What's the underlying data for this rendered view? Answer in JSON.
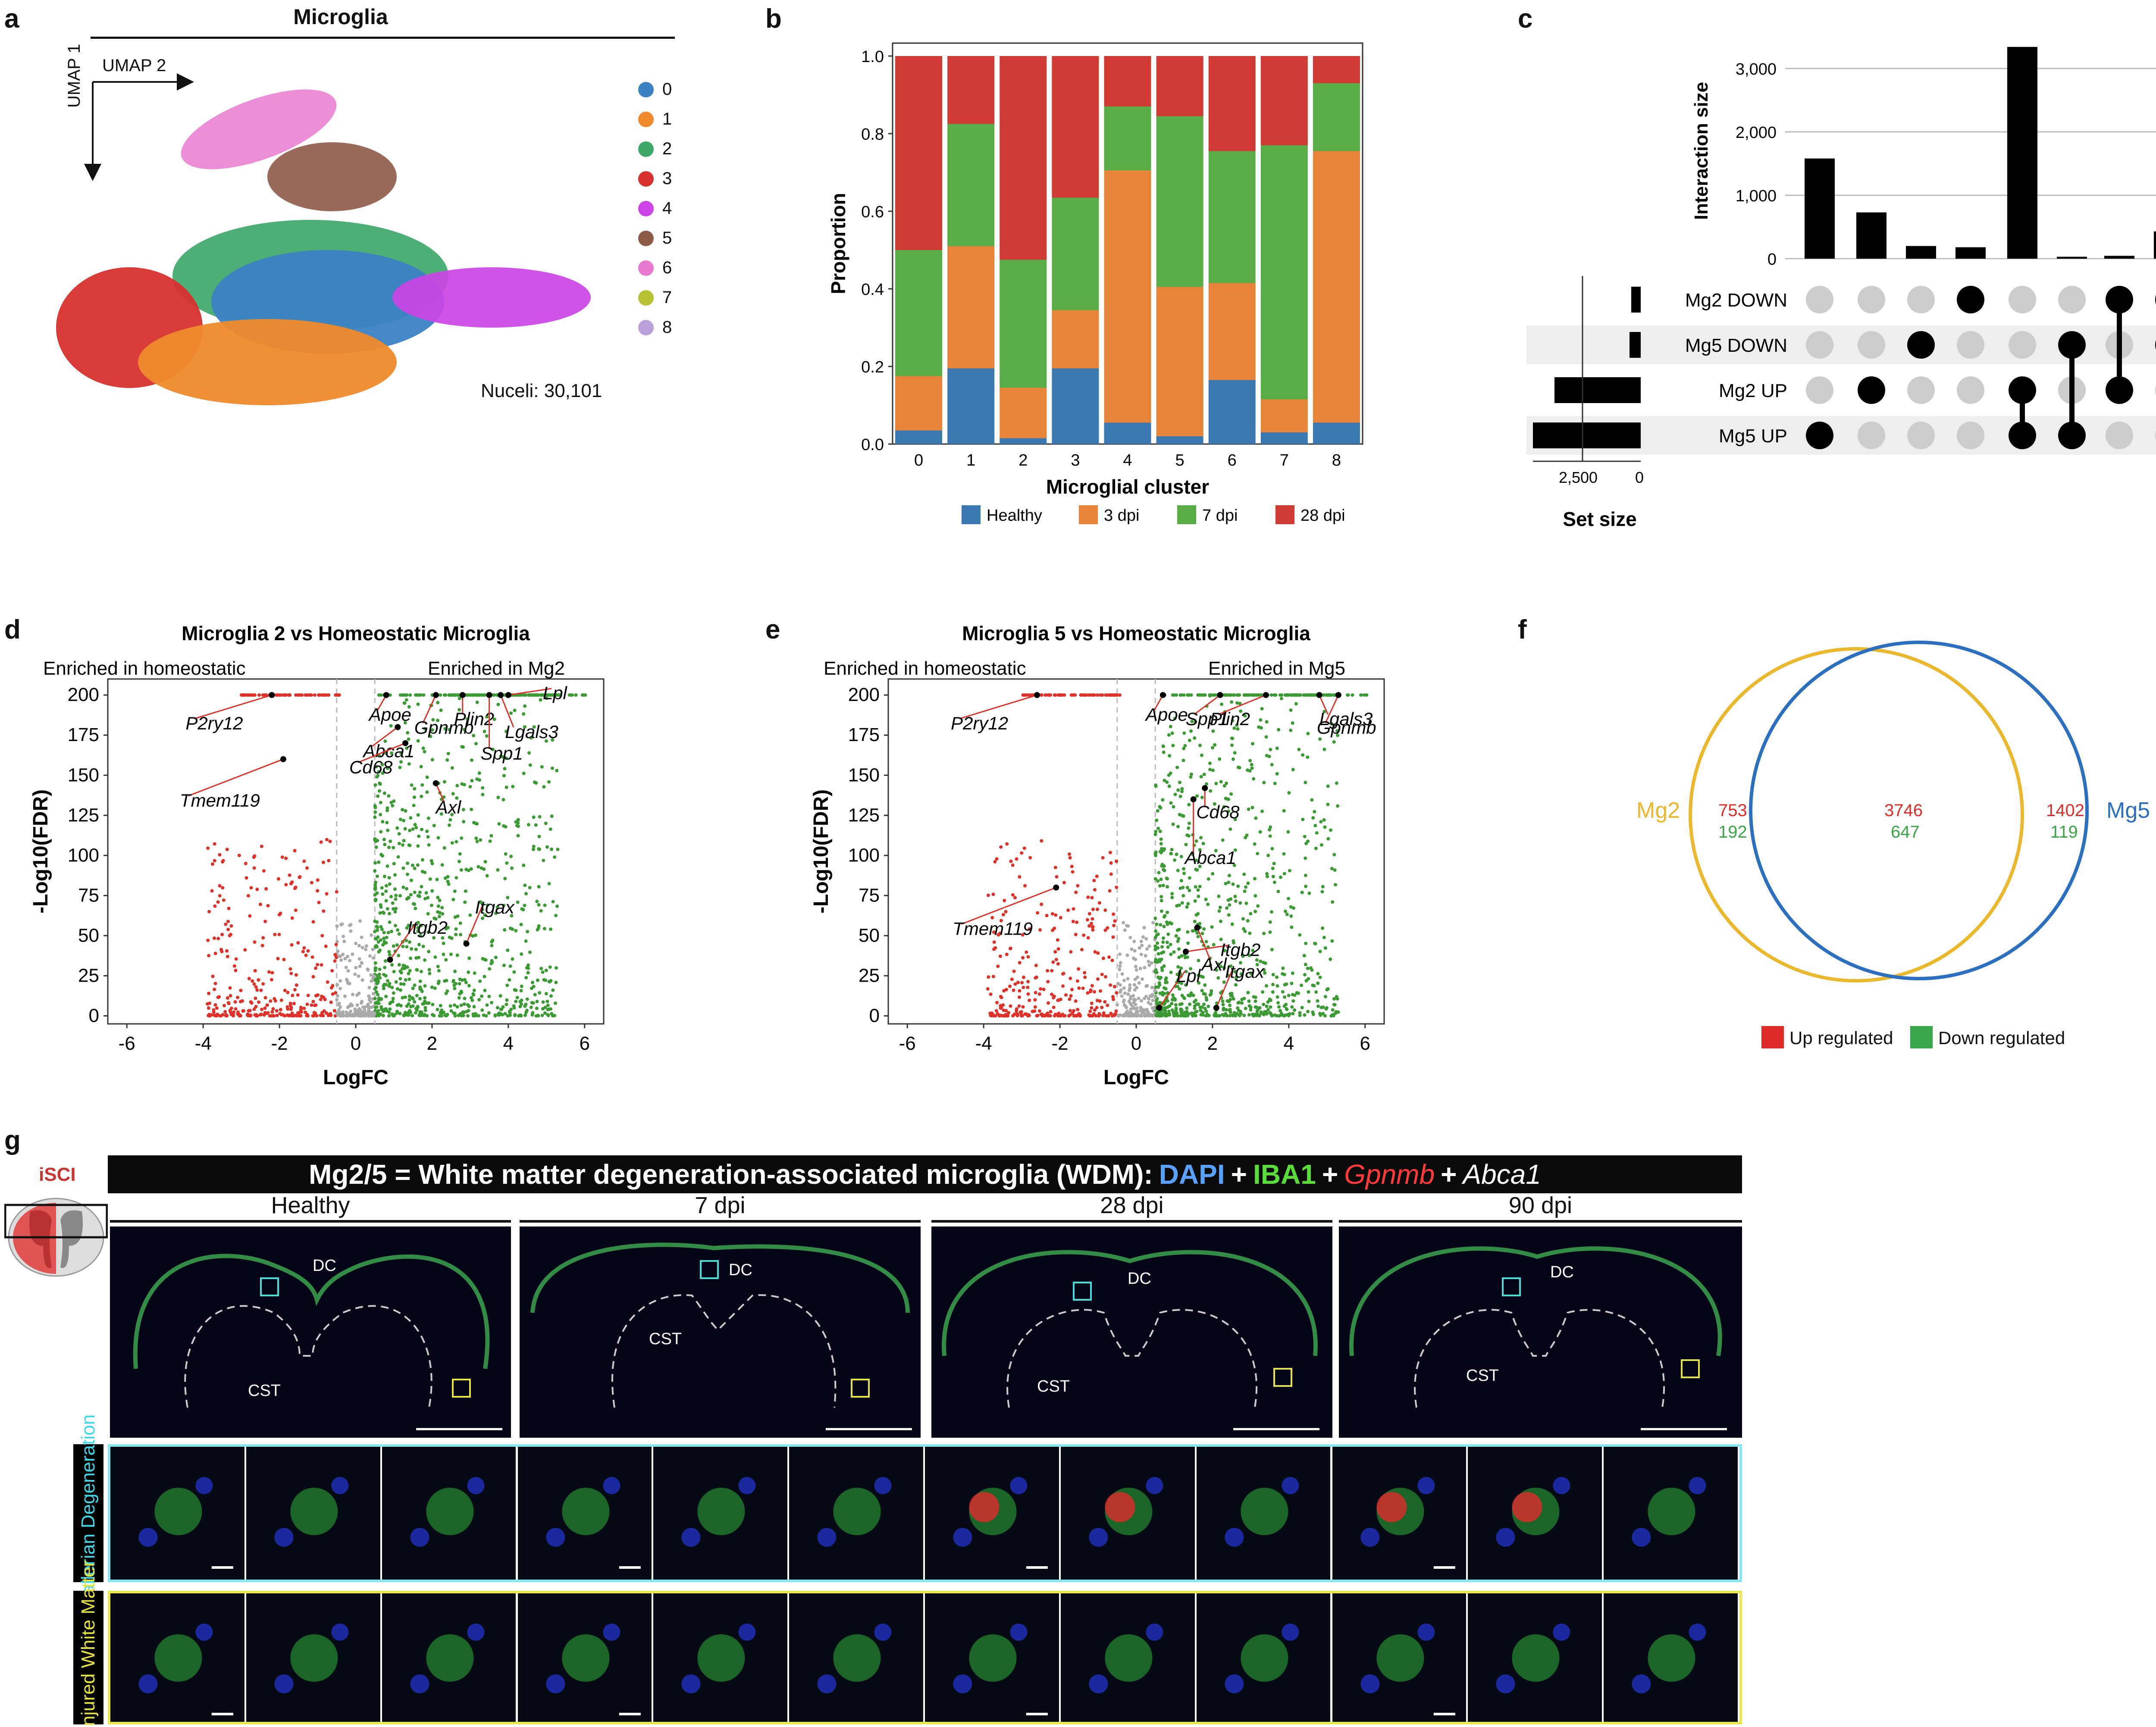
{
  "panel_labels": [
    "a",
    "b",
    "c",
    "d",
    "e",
    "f",
    "g"
  ],
  "panel_a": {
    "title": "Microglia",
    "axis_x": "UMAP 2",
    "axis_y": "UMAP 1",
    "nuclei": "Nuceli: 30,101",
    "legend": [
      {
        "label": "0",
        "color": "#3b82c4"
      },
      {
        "label": "1",
        "color": "#ee8a2b"
      },
      {
        "label": "2",
        "color": "#3ea86a"
      },
      {
        "label": "3",
        "color": "#d7302e"
      },
      {
        "label": "4",
        "color": "#cc44e6"
      },
      {
        "label": "5",
        "color": "#8e5a48"
      },
      {
        "label": "6",
        "color": "#e87ad0"
      },
      {
        "label": "7",
        "color": "#b6c232"
      },
      {
        "label": "8",
        "color": "#b9a0d8"
      }
    ]
  },
  "chart_data": [
    {
      "id": "b",
      "type": "bar",
      "stacked": true,
      "categories": [
        "0",
        "1",
        "2",
        "3",
        "4",
        "5",
        "6",
        "7",
        "8"
      ],
      "series": [
        {
          "name": "Healthy",
          "color": "#3b77b0",
          "values": [
            0.035,
            0.195,
            0.015,
            0.195,
            0.055,
            0.02,
            0.165,
            0.03,
            0.055
          ]
        },
        {
          "name": "3 dpi",
          "color": "#e8843a",
          "values": [
            0.14,
            0.315,
            0.13,
            0.15,
            0.65,
            0.385,
            0.25,
            0.085,
            0.7
          ]
        },
        {
          "name": "7 dpi",
          "color": "#5aac46",
          "values": [
            0.325,
            0.315,
            0.33,
            0.29,
            0.165,
            0.44,
            0.34,
            0.655,
            0.175
          ]
        },
        {
          "name": "28 dpi",
          "color": "#d03a35",
          "values": [
            0.5,
            0.175,
            0.525,
            0.365,
            0.13,
            0.155,
            0.245,
            0.23,
            0.07
          ]
        }
      ],
      "xlabel": "Microglial cluster",
      "ylabel": "Proportion",
      "ylim": [
        0,
        1
      ],
      "yticks": [
        "0.0",
        "0.2",
        "0.4",
        "0.6",
        "0.8",
        "1.0"
      ]
    },
    {
      "id": "c",
      "type": "upset",
      "ylabel": "Interaction size",
      "yticks": [
        "0",
        "1,000",
        "2,000",
        "3,000"
      ],
      "ylim": [
        0,
        3400
      ],
      "bars": [
        1580,
        730,
        200,
        180,
        3340,
        30,
        45,
        430
      ],
      "sets": [
        "Mg2 DOWN",
        "Mg5 DOWN",
        "Mg2 UP",
        "Mg5 UP"
      ],
      "set_sizes": [
        220,
        260,
        2000,
        2500
      ],
      "set_size_label": "Set size",
      "set_size_ticks": [
        "2,500",
        "0"
      ],
      "matrix": [
        [
          3
        ],
        [
          2
        ],
        [
          1
        ],
        [
          0
        ],
        [
          2,
          3
        ],
        [
          1,
          3
        ],
        [
          0,
          2
        ],
        [
          0,
          1
        ]
      ]
    },
    {
      "id": "d",
      "type": "scatter",
      "title": "Microglia 2 vs Homeostatic Microglia",
      "left_note": "Enriched in homeostatic",
      "right_note": "Enriched in Mg2",
      "xlabel": "LogFC",
      "ylabel": "-Log10(FDR)",
      "xlim": [
        -6.5,
        6.5
      ],
      "ylim": [
        -5,
        210
      ],
      "xticks": [
        -6,
        -4,
        -2,
        0,
        2,
        4,
        6
      ],
      "yticks": [
        0,
        25,
        50,
        75,
        100,
        125,
        150,
        175,
        200
      ],
      "labels": [
        {
          "text": "P2ry12",
          "x": -2.2,
          "y": 200
        },
        {
          "text": "Tmem119",
          "x": -1.9,
          "y": 160
        },
        {
          "text": "Apoe",
          "x": 0.8,
          "y": 200
        },
        {
          "text": "Abca1",
          "x": 1.1,
          "y": 180
        },
        {
          "text": "Cd68",
          "x": 1.3,
          "y": 170
        },
        {
          "text": "Gpnmb",
          "x": 2.1,
          "y": 200
        },
        {
          "text": "Axl",
          "x": 2.1,
          "y": 145
        },
        {
          "text": "Plin2",
          "x": 2.8,
          "y": 200
        },
        {
          "text": "Spp1",
          "x": 3.5,
          "y": 200
        },
        {
          "text": "Lgals3",
          "x": 3.8,
          "y": 200
        },
        {
          "text": "Lpl",
          "x": 4.0,
          "y": 200
        },
        {
          "text": "Itgb2",
          "x": 0.9,
          "y": 35
        },
        {
          "text": "Itgax",
          "x": 2.9,
          "y": 45
        }
      ]
    },
    {
      "id": "e",
      "type": "scatter",
      "title": "Microglia 5 vs Homeostatic Microglia",
      "left_note": "Enriched in homeostatic",
      "right_note": "Enriched in Mg5",
      "xlabel": "LogFC",
      "ylabel": "-Log10(FDR)",
      "xlim": [
        -6.5,
        6.5
      ],
      "ylim": [
        -5,
        210
      ],
      "xticks": [
        -6,
        -4,
        -2,
        0,
        2,
        4,
        6
      ],
      "yticks": [
        0,
        25,
        50,
        75,
        100,
        125,
        150,
        175,
        200
      ],
      "labels": [
        {
          "text": "P2ry12",
          "x": -2.6,
          "y": 200
        },
        {
          "text": "Tmem119",
          "x": -2.1,
          "y": 80
        },
        {
          "text": "Apoe",
          "x": 0.7,
          "y": 200
        },
        {
          "text": "Spp1",
          "x": 2.2,
          "y": 200
        },
        {
          "text": "Plin2",
          "x": 3.4,
          "y": 200
        },
        {
          "text": "Gpnmb",
          "x": 5.3,
          "y": 200
        },
        {
          "text": "Lgals3",
          "x": 4.8,
          "y": 200
        },
        {
          "text": "Cd68",
          "x": 1.8,
          "y": 142
        },
        {
          "text": "Abca1",
          "x": 1.5,
          "y": 135
        },
        {
          "text": "Axl",
          "x": 1.6,
          "y": 55
        },
        {
          "text": "Itgb2",
          "x": 1.3,
          "y": 40
        },
        {
          "text": "Lpl",
          "x": 0.6,
          "y": 5
        },
        {
          "text": "Itgax",
          "x": 2.1,
          "y": 5
        }
      ]
    }
  ],
  "panel_f": {
    "set_a": "Mg2",
    "set_b": "Mg5",
    "only_a_up": "753",
    "only_a_down": "192",
    "both_up": "3746",
    "both_down": "647",
    "only_b_up": "1402",
    "only_b_down": "119",
    "legend_up": "Up regulated",
    "legend_down": "Down regulated",
    "colors": {
      "a": "#e9b82c",
      "b": "#2c6fc1",
      "up": "#e02b2b",
      "down": "#3aa64a"
    }
  },
  "panel_g": {
    "header": {
      "prefix": "Mg2/5 = White matter degeneration-associated microglia (WDM)",
      "colon": ":",
      "dapi": "DAPI",
      "plus": "+",
      "iba1": "IBA1",
      "gpnmb": "Gpnmb",
      "abca1": "Abca1"
    },
    "iscil": "iSCI",
    "timepoints": [
      "Healthy",
      "7 dpi",
      "28 dpi",
      "90 dpi"
    ],
    "region_dc": "DC",
    "region_cst": "CST",
    "row1": "Wallerian Degeneration",
    "row2": "Uninjured White Matter"
  }
}
